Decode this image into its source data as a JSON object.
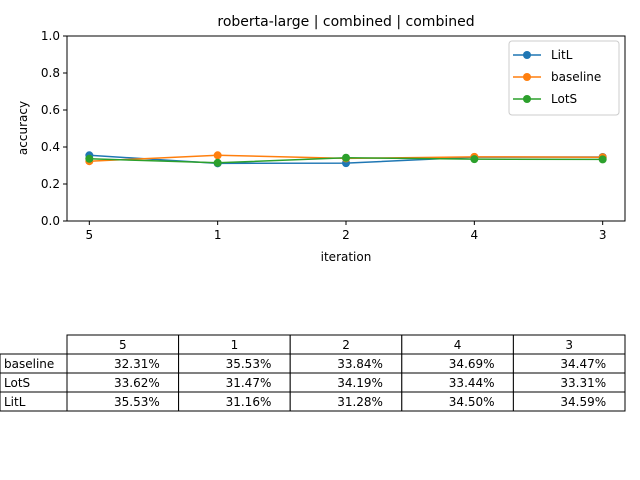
{
  "chart_data": {
    "type": "line",
    "title": "roberta-large | combined | combined",
    "xlabel": "iteration",
    "ylabel": "accuracy",
    "categories": [
      "5",
      "1",
      "2",
      "4",
      "3"
    ],
    "ylim": [
      0.0,
      1.0
    ],
    "yticks": [
      "0.0",
      "0.2",
      "0.4",
      "0.6",
      "0.8",
      "1.0"
    ],
    "legend_position": "top-right",
    "grid": false,
    "series": [
      {
        "name": "LitL",
        "color": "#1f77b4",
        "values": [
          0.3553,
          0.3116,
          0.3128,
          0.345,
          0.3459
        ]
      },
      {
        "name": "baseline",
        "color": "#ff7f0e",
        "values": [
          0.3231,
          0.3553,
          0.3384,
          0.3469,
          0.3447
        ]
      },
      {
        "name": "LotS",
        "color": "#2ca02c",
        "values": [
          0.3362,
          0.3147,
          0.3419,
          0.3344,
          0.3331
        ]
      }
    ],
    "table": {
      "columns": [
        "5",
        "1",
        "2",
        "4",
        "3"
      ],
      "rows": [
        {
          "label": "baseline",
          "cells": [
            "32.31%",
            "35.53%",
            "33.84%",
            "34.69%",
            "34.47%"
          ]
        },
        {
          "label": "LotS",
          "cells": [
            "33.62%",
            "31.47%",
            "34.19%",
            "33.44%",
            "33.31%"
          ]
        },
        {
          "label": "LitL",
          "cells": [
            "35.53%",
            "31.16%",
            "31.28%",
            "34.50%",
            "34.59%"
          ]
        }
      ]
    }
  }
}
